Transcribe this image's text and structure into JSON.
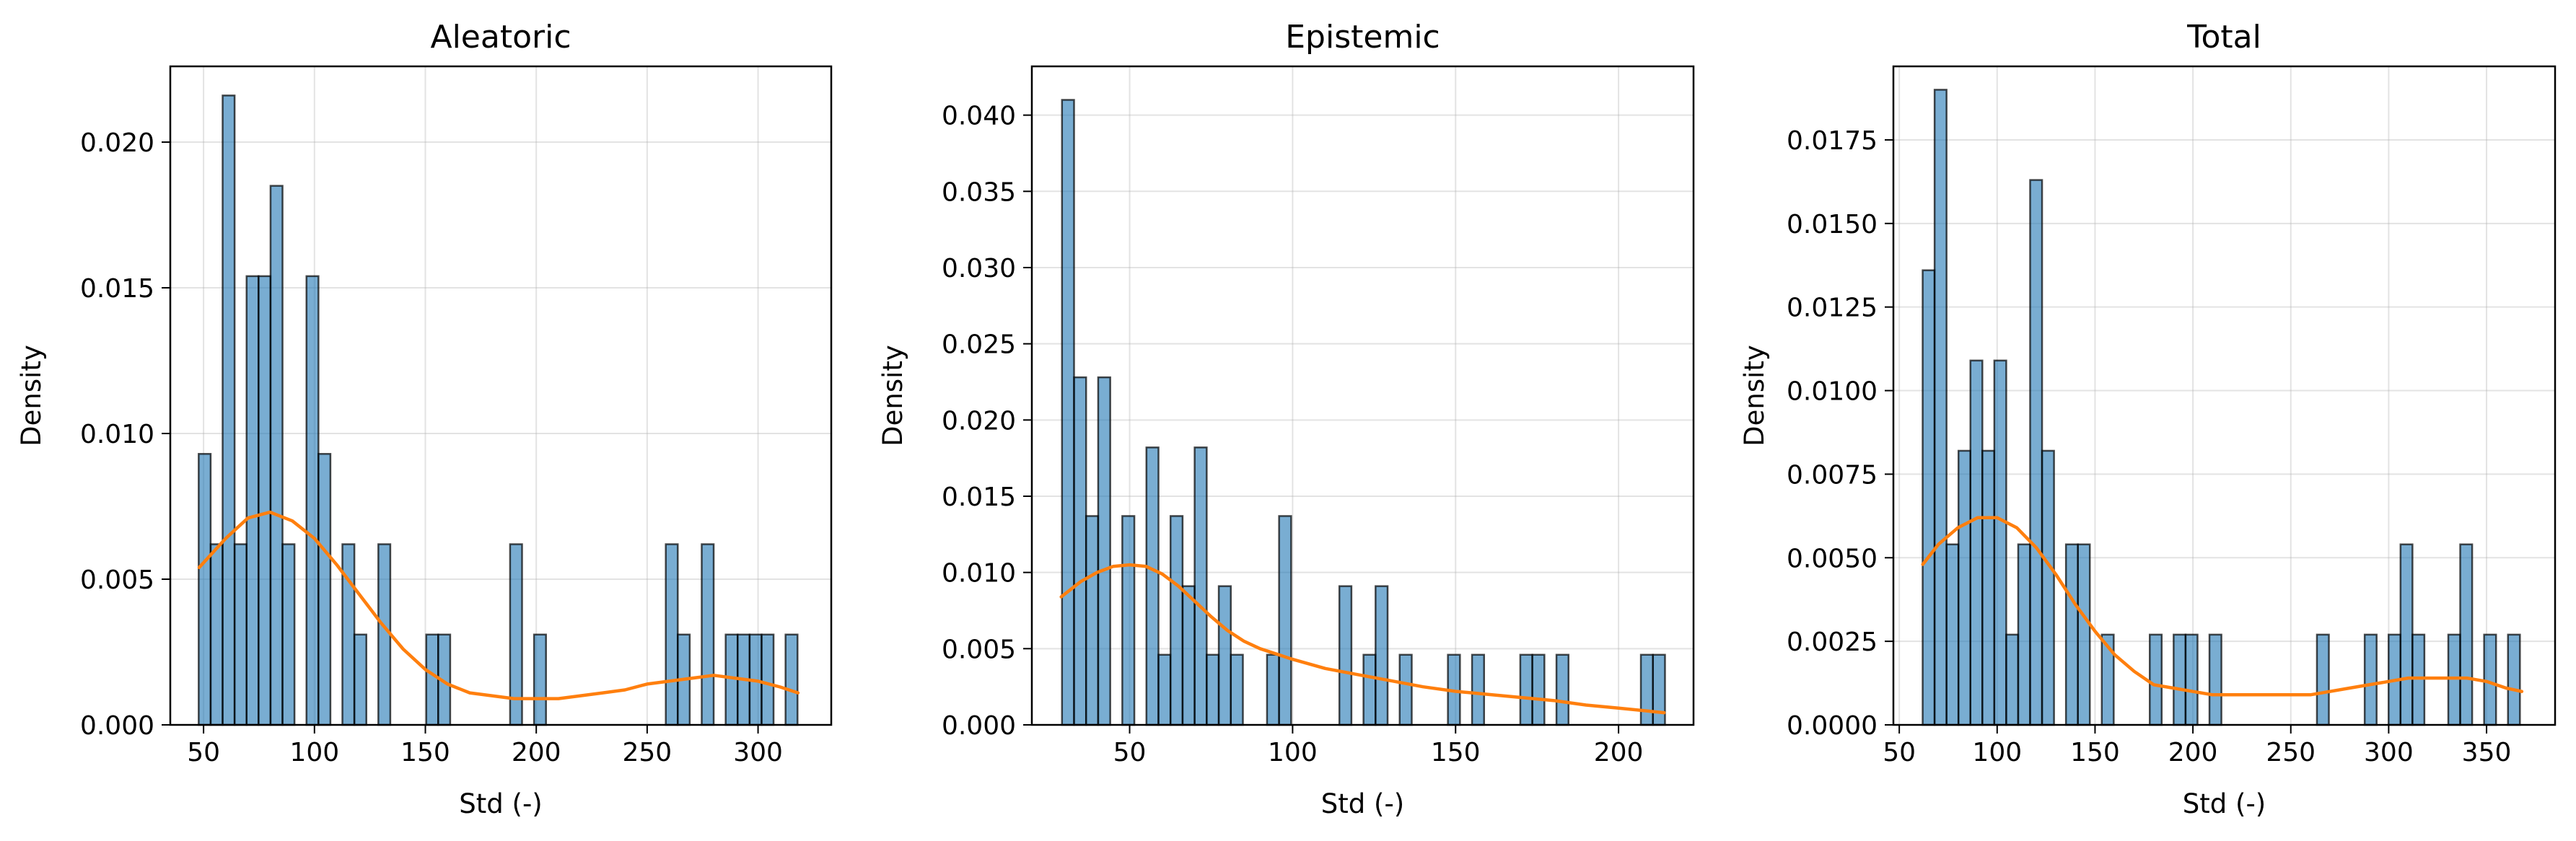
{
  "colors": {
    "bar": "#1f77b4",
    "kde": "#ff7f0e"
  },
  "chart_data": [
    {
      "type": "bar",
      "title": "Aleatoric",
      "xlabel": "Std (-)",
      "ylabel": "Density",
      "grid": true,
      "xlim": [
        35,
        333
      ],
      "ylim": [
        0,
        0.0226
      ],
      "xticks": [
        50,
        100,
        150,
        200,
        250,
        300
      ],
      "yticks": [
        0.0,
        0.005,
        0.01,
        0.015,
        0.02
      ],
      "ytick_labels": [
        "0.000",
        "0.005",
        "0.010",
        "0.015",
        "0.020"
      ],
      "bin_width": 5.4,
      "bars": [
        {
          "x": 50.5,
          "y": 0.0093
        },
        {
          "x": 55.9,
          "y": 0.0062
        },
        {
          "x": 61.3,
          "y": 0.0216
        },
        {
          "x": 66.7,
          "y": 0.0062
        },
        {
          "x": 72.1,
          "y": 0.0154
        },
        {
          "x": 77.5,
          "y": 0.0154
        },
        {
          "x": 82.9,
          "y": 0.0185
        },
        {
          "x": 88.3,
          "y": 0.0062
        },
        {
          "x": 99.1,
          "y": 0.0154
        },
        {
          "x": 104.5,
          "y": 0.0093
        },
        {
          "x": 115.3,
          "y": 0.0062
        },
        {
          "x": 120.7,
          "y": 0.0031
        },
        {
          "x": 131.5,
          "y": 0.0062
        },
        {
          "x": 153.1,
          "y": 0.0031
        },
        {
          "x": 158.5,
          "y": 0.0031
        },
        {
          "x": 190.9,
          "y": 0.0062
        },
        {
          "x": 201.7,
          "y": 0.0031
        },
        {
          "x": 261.1,
          "y": 0.0062
        },
        {
          "x": 266.5,
          "y": 0.0031
        },
        {
          "x": 277.3,
          "y": 0.0062
        },
        {
          "x": 288.1,
          "y": 0.0031
        },
        {
          "x": 293.5,
          "y": 0.0031
        },
        {
          "x": 298.9,
          "y": 0.0031
        },
        {
          "x": 304.3,
          "y": 0.0031
        },
        {
          "x": 315.1,
          "y": 0.0031
        }
      ],
      "kde": [
        [
          48,
          0.0054
        ],
        [
          60,
          0.0064
        ],
        [
          70,
          0.0071
        ],
        [
          80,
          0.0073
        ],
        [
          90,
          0.007
        ],
        [
          100,
          0.0064
        ],
        [
          110,
          0.0055
        ],
        [
          120,
          0.0045
        ],
        [
          130,
          0.0035
        ],
        [
          140,
          0.0026
        ],
        [
          150,
          0.0019
        ],
        [
          160,
          0.0014
        ],
        [
          170,
          0.0011
        ],
        [
          180,
          0.001
        ],
        [
          190,
          0.0009
        ],
        [
          200,
          0.0009
        ],
        [
          210,
          0.0009
        ],
        [
          220,
          0.001
        ],
        [
          230,
          0.0011
        ],
        [
          240,
          0.0012
        ],
        [
          250,
          0.0014
        ],
        [
          260,
          0.0015
        ],
        [
          270,
          0.0016
        ],
        [
          280,
          0.0017
        ],
        [
          290,
          0.0016
        ],
        [
          300,
          0.0015
        ],
        [
          310,
          0.0013
        ],
        [
          318,
          0.0011
        ]
      ]
    },
    {
      "type": "bar",
      "title": "Epistemic",
      "xlabel": "Std (-)",
      "ylabel": "Density",
      "grid": true,
      "xlim": [
        20,
        223
      ],
      "ylim": [
        0,
        0.0432
      ],
      "xticks": [
        50,
        100,
        150,
        200
      ],
      "yticks": [
        0.0,
        0.005,
        0.01,
        0.015,
        0.02,
        0.025,
        0.03,
        0.035,
        0.04
      ],
      "ytick_labels": [
        "0.000",
        "0.005",
        "0.010",
        "0.015",
        "0.020",
        "0.025",
        "0.030",
        "0.035",
        "0.040"
      ],
      "bin_width": 3.7,
      "bars": [
        {
          "x": 31.1,
          "y": 0.041
        },
        {
          "x": 34.8,
          "y": 0.0228
        },
        {
          "x": 38.5,
          "y": 0.0137
        },
        {
          "x": 42.2,
          "y": 0.0228
        },
        {
          "x": 49.6,
          "y": 0.0137
        },
        {
          "x": 57.0,
          "y": 0.0182
        },
        {
          "x": 60.7,
          "y": 0.0046
        },
        {
          "x": 64.4,
          "y": 0.0137
        },
        {
          "x": 68.1,
          "y": 0.0091
        },
        {
          "x": 71.8,
          "y": 0.0182
        },
        {
          "x": 75.5,
          "y": 0.0046
        },
        {
          "x": 79.2,
          "y": 0.0091
        },
        {
          "x": 82.9,
          "y": 0.0046
        },
        {
          "x": 94.0,
          "y": 0.0046
        },
        {
          "x": 97.7,
          "y": 0.0137
        },
        {
          "x": 116.2,
          "y": 0.0091
        },
        {
          "x": 123.6,
          "y": 0.0046
        },
        {
          "x": 127.3,
          "y": 0.0091
        },
        {
          "x": 134.7,
          "y": 0.0046
        },
        {
          "x": 149.5,
          "y": 0.0046
        },
        {
          "x": 156.9,
          "y": 0.0046
        },
        {
          "x": 171.7,
          "y": 0.0046
        },
        {
          "x": 175.4,
          "y": 0.0046
        },
        {
          "x": 182.8,
          "y": 0.0046
        },
        {
          "x": 208.7,
          "y": 0.0046
        },
        {
          "x": 212.4,
          "y": 0.0046
        }
      ],
      "kde": [
        [
          29,
          0.0084
        ],
        [
          35,
          0.0094
        ],
        [
          40,
          0.01
        ],
        [
          45,
          0.0104
        ],
        [
          50,
          0.0105
        ],
        [
          55,
          0.0104
        ],
        [
          60,
          0.0099
        ],
        [
          65,
          0.0091
        ],
        [
          70,
          0.0081
        ],
        [
          75,
          0.0071
        ],
        [
          80,
          0.0062
        ],
        [
          85,
          0.0055
        ],
        [
          90,
          0.005
        ],
        [
          100,
          0.0043
        ],
        [
          110,
          0.0037
        ],
        [
          120,
          0.0033
        ],
        [
          130,
          0.0029
        ],
        [
          140,
          0.0025
        ],
        [
          150,
          0.0022
        ],
        [
          160,
          0.002
        ],
        [
          170,
          0.0018
        ],
        [
          180,
          0.0016
        ],
        [
          190,
          0.0013
        ],
        [
          200,
          0.0011
        ],
        [
          214,
          0.0008
        ]
      ]
    },
    {
      "type": "bar",
      "title": "Total",
      "xlabel": "Std (-)",
      "ylabel": "Density",
      "grid": true,
      "xlim": [
        47,
        385
      ],
      "ylim": [
        0,
        0.0197
      ],
      "xticks": [
        50,
        100,
        150,
        200,
        250,
        300,
        350
      ],
      "yticks": [
        0.0,
        0.0025,
        0.005,
        0.0075,
        0.01,
        0.0125,
        0.015,
        0.0175
      ],
      "ytick_labels": [
        "0.0000",
        "0.0025",
        "0.0050",
        "0.0075",
        "0.0100",
        "0.0125",
        "0.0150",
        "0.0175"
      ],
      "bin_width": 6.1,
      "bars": [
        {
          "x": 65.0,
          "y": 0.0136
        },
        {
          "x": 71.1,
          "y": 0.019
        },
        {
          "x": 77.2,
          "y": 0.0054
        },
        {
          "x": 83.3,
          "y": 0.0082
        },
        {
          "x": 89.4,
          "y": 0.0109
        },
        {
          "x": 95.5,
          "y": 0.0082
        },
        {
          "x": 101.6,
          "y": 0.0109
        },
        {
          "x": 107.7,
          "y": 0.0027
        },
        {
          "x": 113.8,
          "y": 0.0054
        },
        {
          "x": 119.9,
          "y": 0.0163
        },
        {
          "x": 126.0,
          "y": 0.0082
        },
        {
          "x": 138.2,
          "y": 0.0054
        },
        {
          "x": 144.3,
          "y": 0.0054
        },
        {
          "x": 156.5,
          "y": 0.0027
        },
        {
          "x": 181.0,
          "y": 0.0027
        },
        {
          "x": 193.2,
          "y": 0.0027
        },
        {
          "x": 199.3,
          "y": 0.0027
        },
        {
          "x": 211.5,
          "y": 0.0027
        },
        {
          "x": 266.4,
          "y": 0.0027
        },
        {
          "x": 290.8,
          "y": 0.0027
        },
        {
          "x": 303.0,
          "y": 0.0027
        },
        {
          "x": 309.1,
          "y": 0.0054
        },
        {
          "x": 315.2,
          "y": 0.0027
        },
        {
          "x": 333.5,
          "y": 0.0027
        },
        {
          "x": 339.6,
          "y": 0.0054
        },
        {
          "x": 351.8,
          "y": 0.0027
        },
        {
          "x": 364.0,
          "y": 0.0027
        }
      ],
      "kde": [
        [
          62,
          0.0048
        ],
        [
          70,
          0.0054
        ],
        [
          80,
          0.0059
        ],
        [
          90,
          0.0062
        ],
        [
          100,
          0.0062
        ],
        [
          110,
          0.0059
        ],
        [
          120,
          0.0053
        ],
        [
          130,
          0.0045
        ],
        [
          140,
          0.0036
        ],
        [
          150,
          0.0028
        ],
        [
          160,
          0.0021
        ],
        [
          170,
          0.0016
        ],
        [
          180,
          0.0012
        ],
        [
          190,
          0.0011
        ],
        [
          200,
          0.001
        ],
        [
          210,
          0.0009
        ],
        [
          220,
          0.0009
        ],
        [
          230,
          0.0009
        ],
        [
          240,
          0.0009
        ],
        [
          250,
          0.0009
        ],
        [
          260,
          0.0009
        ],
        [
          270,
          0.001
        ],
        [
          280,
          0.0011
        ],
        [
          290,
          0.0012
        ],
        [
          300,
          0.0013
        ],
        [
          310,
          0.0014
        ],
        [
          320,
          0.0014
        ],
        [
          330,
          0.0014
        ],
        [
          340,
          0.0014
        ],
        [
          350,
          0.0013
        ],
        [
          360,
          0.0011
        ],
        [
          368,
          0.001
        ]
      ]
    }
  ]
}
